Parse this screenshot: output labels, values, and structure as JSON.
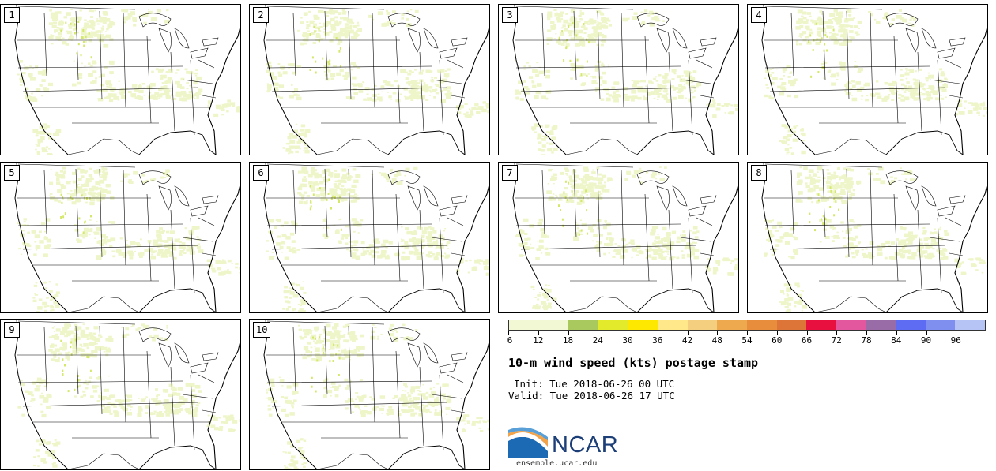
{
  "panels": [
    {
      "label": "1"
    },
    {
      "label": "2"
    },
    {
      "label": "3"
    },
    {
      "label": "4"
    },
    {
      "label": "5"
    },
    {
      "label": "6"
    },
    {
      "label": "7"
    },
    {
      "label": "8"
    },
    {
      "label": "9"
    },
    {
      "label": "10"
    }
  ],
  "colorbar": {
    "colors": [
      "#f2f7d4",
      "#f2f7d4",
      "#a9c95e",
      "#e3ea2c",
      "#ffe800",
      "#ffe88a",
      "#f5cf80",
      "#eea94e",
      "#e88d3b",
      "#dd7438",
      "#e8103f",
      "#e2579e",
      "#9a6ca7",
      "#5d6cf3",
      "#7f8ff0",
      "#b5c4f5"
    ],
    "tick_labels": [
      "6",
      "12",
      "18",
      "24",
      "30",
      "36",
      "42",
      "48",
      "54",
      "60",
      "66",
      "72",
      "78",
      "84",
      "90",
      "96"
    ]
  },
  "title": "10-m wind speed (kts) postage stamp",
  "init": "Init: Tue 2018-06-26 00 UTC",
  "valid": "Valid: Tue 2018-06-26 17 UTC",
  "logo": {
    "text": "NCAR",
    "site": "ensemble.ucar.edu"
  }
}
